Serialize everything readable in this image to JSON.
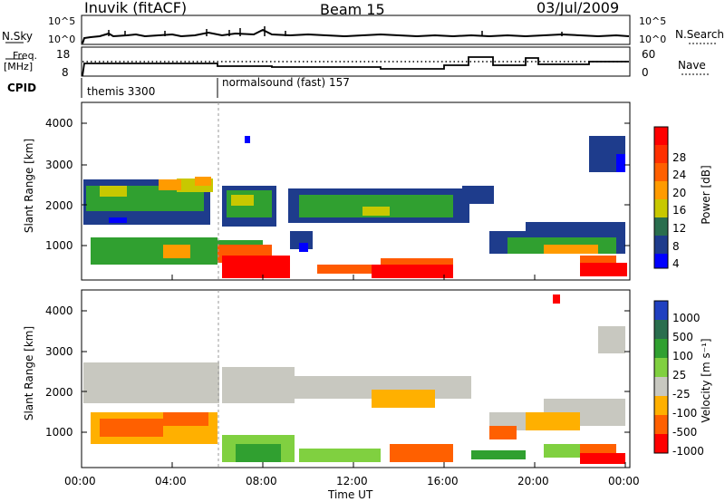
{
  "header": {
    "station": "Inuvik (fitACF)",
    "beam": "Beam 15",
    "date": "03/Jul/2009"
  },
  "panels": {
    "nsky": {
      "label": "N.Sky",
      "ticks": [
        "10^5",
        "10^0"
      ],
      "right_label": "N.Search",
      "right_ticks": [
        "10^5",
        "10^0"
      ]
    },
    "freq": {
      "label_top": "Freq.",
      "label_bottom": "[MHz]",
      "ticks": [
        "18",
        "8"
      ],
      "right_label": "Nave",
      "right_ticks": [
        "60",
        "0"
      ]
    },
    "cpid": {
      "label": "CPID",
      "entries": [
        "themis 3300",
        "normalsound (fast) 157"
      ]
    }
  },
  "chart_data": [
    {
      "type": "heatmap",
      "title": "",
      "ylabel": "Slant Range [km]",
      "xlabel": "",
      "xlim": [
        "00:00",
        "24:00"
      ],
      "ylim": [
        180,
        4500
      ],
      "yticks": [
        "1000",
        "2000",
        "3000",
        "4000"
      ],
      "xticks": [
        "00:00",
        "04:00",
        "08:00",
        "12:00",
        "16:00",
        "20:00",
        "00:00"
      ],
      "colorbar": {
        "label": "Power [dB]",
        "ticks": [
          "28",
          "24",
          "20",
          "16",
          "12",
          "8",
          "4"
        ],
        "colors": [
          "#ff0000",
          "#ff5a00",
          "#ff9b00",
          "#c8c800",
          "#30a030",
          "#2a6e4e",
          "#1e3c8c",
          "#0000ff"
        ]
      }
    },
    {
      "type": "heatmap",
      "title": "",
      "ylabel": "Slant Range [km]",
      "xlabel": "Time UT",
      "xlim": [
        "00:00",
        "24:00"
      ],
      "ylim": [
        180,
        4500
      ],
      "yticks": [
        "1000",
        "2000",
        "3000",
        "4000"
      ],
      "xticks": [
        "00:00",
        "04:00",
        "08:00",
        "12:00",
        "16:00",
        "20:00",
        "00:00"
      ],
      "colorbar": {
        "label": "Velocity [m s⁻¹]",
        "ticks": [
          "1000",
          "500",
          "100",
          "25",
          "-25",
          "-100",
          "-500",
          "-1000"
        ],
        "colors": [
          "#2040c0",
          "#2a6e4e",
          "#30a030",
          "#80d040",
          "#c8c8c0",
          "#ffb000",
          "#ff6000",
          "#ff0000"
        ]
      }
    }
  ]
}
